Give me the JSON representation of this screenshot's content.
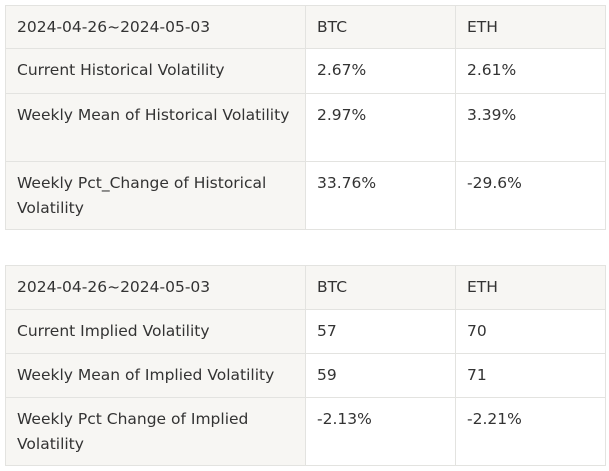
{
  "tables": [
    {
      "header": [
        "2024-04-26~2024-05-03",
        "BTC",
        "ETH"
      ],
      "rows": [
        [
          "Current Historical Volatility",
          "2.67%",
          "2.61%"
        ],
        [
          "Weekly Mean of Historical Volatility",
          "2.97%",
          "3.39%"
        ],
        [
          "Weekly Pct_Change of Historical Volatility",
          "33.76%",
          "-29.6%"
        ]
      ]
    },
    {
      "header": [
        "2024-04-26~2024-05-03",
        "BTC",
        "ETH"
      ],
      "rows": [
        [
          "Current Implied Volatility",
          "57",
          "70"
        ],
        [
          "Weekly Mean of Implied Volatility",
          "59",
          "71"
        ],
        [
          "Weekly Pct Change of Implied Volatility",
          "-2.13%",
          "-2.21%"
        ]
      ]
    }
  ]
}
